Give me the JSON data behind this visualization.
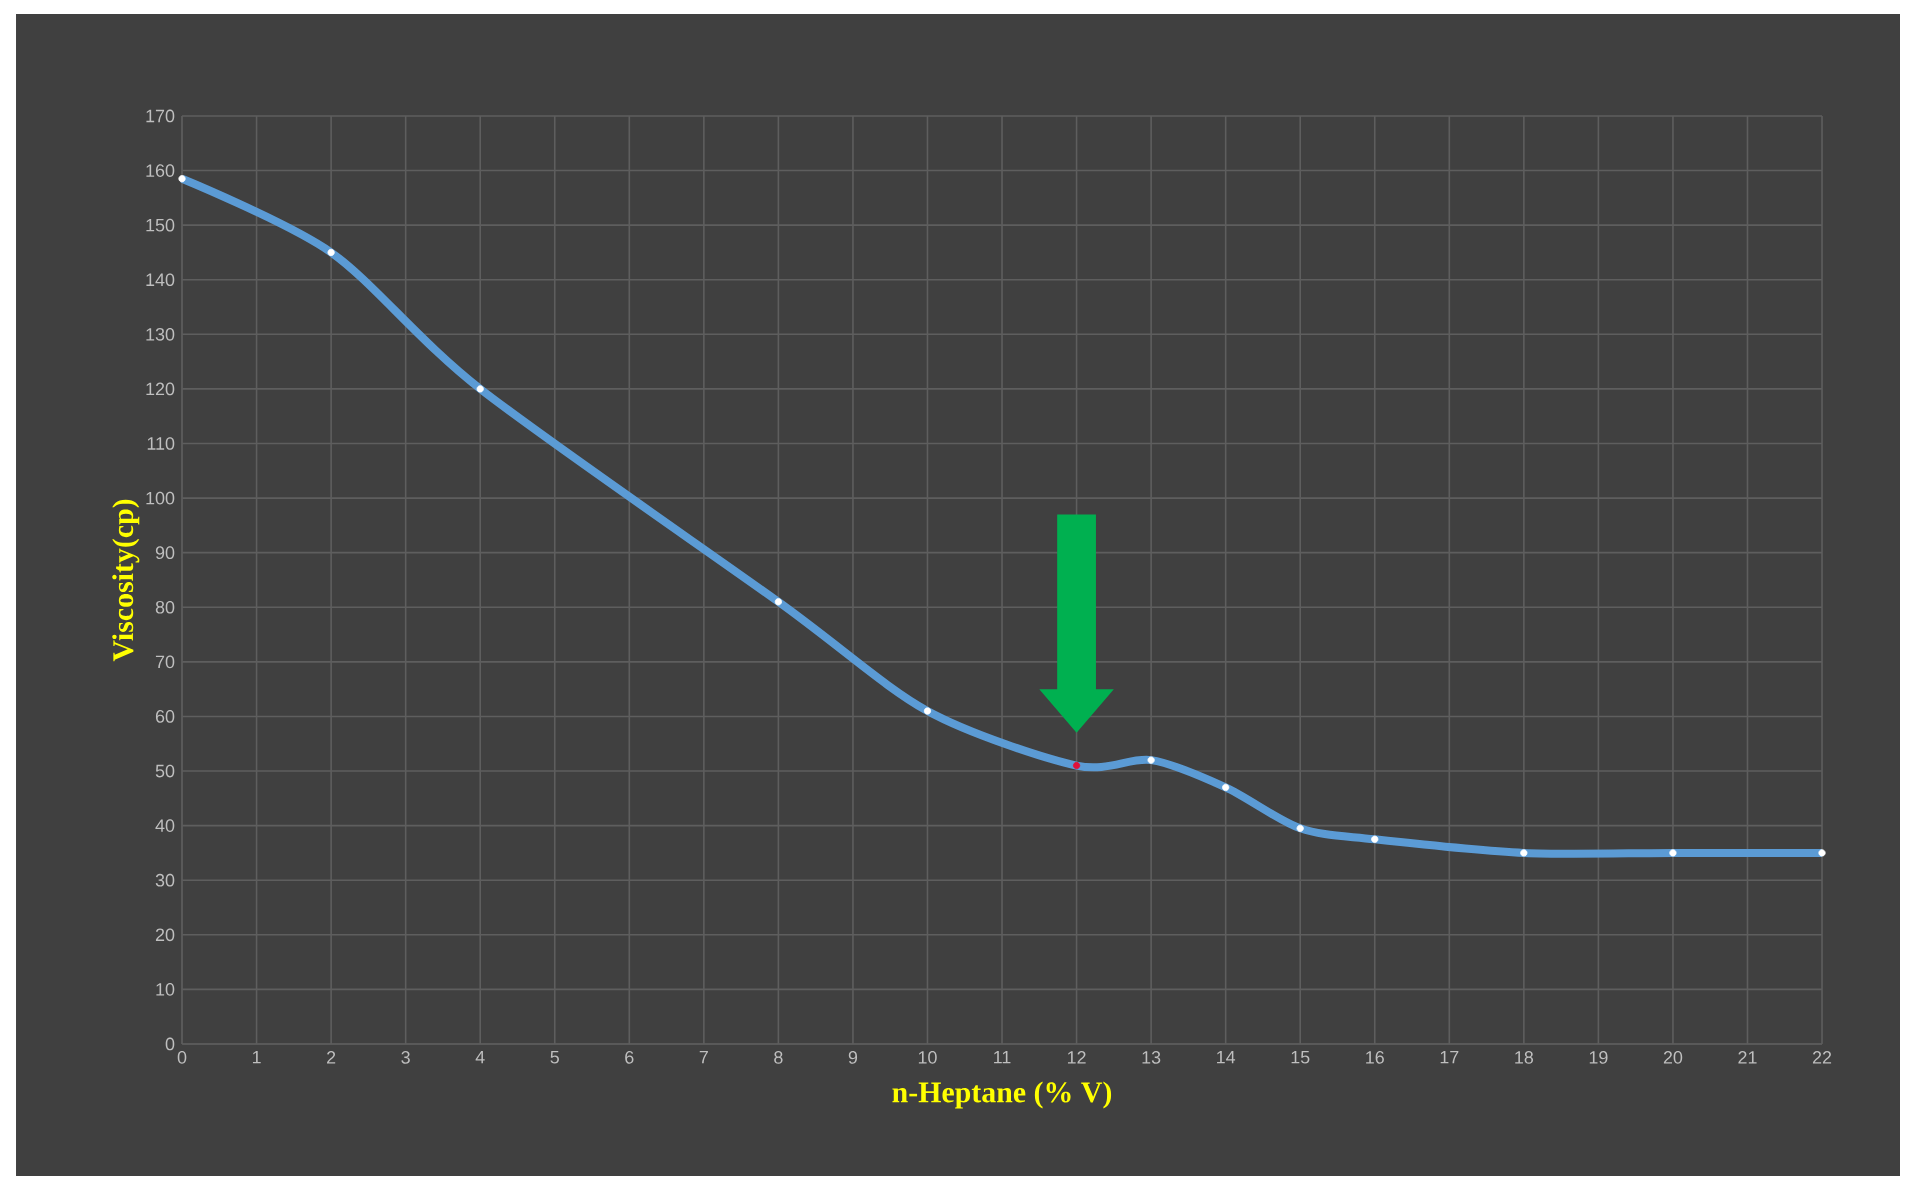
{
  "chart_data": {
    "type": "line",
    "xlabel": "n-Heptane (% V)",
    "ylabel": "Viscosity(cp)",
    "x": [
      0,
      2,
      4,
      8,
      10,
      12,
      13,
      14,
      15,
      16,
      18,
      20,
      22
    ],
    "series": [
      {
        "color": "#5b9bd5",
        "values": [
          158.5,
          145,
          120,
          81,
          61,
          51,
          52,
          47,
          39.5,
          37.5,
          35,
          35,
          35
        ],
        "colors": [
          "#ffffff",
          "#ffffff",
          "#ffffff",
          "#ffffff",
          "#ffffff",
          "#e0103a",
          "#ffffff",
          "#ffffff",
          "#ffffff",
          "#ffffff",
          "#ffffff",
          "#ffffff",
          "#ffffff"
        ]
      }
    ],
    "xlim": [
      0,
      22
    ],
    "xticks": [
      0,
      1,
      2,
      3,
      4,
      5,
      6,
      7,
      8,
      9,
      10,
      11,
      12,
      13,
      14,
      15,
      16,
      17,
      18,
      19,
      20,
      21,
      22
    ],
    "ylim": [
      0,
      170
    ],
    "yticks": [
      0,
      10,
      20,
      30,
      40,
      50,
      60,
      70,
      80,
      90,
      100,
      110,
      120,
      130,
      140,
      150,
      160,
      170
    ],
    "grid": true,
    "marker": "circle",
    "line_style": "solid"
  }
}
